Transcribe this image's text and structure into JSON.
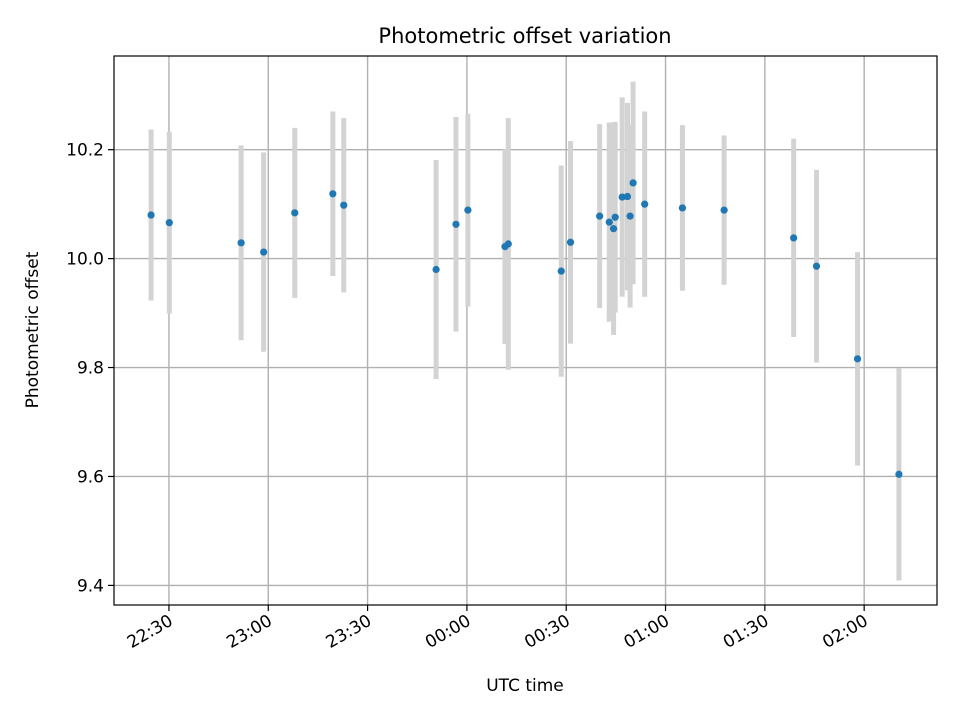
{
  "chart_data": {
    "type": "scatter",
    "title": "Photometric offset variation",
    "xlabel": "UTC time",
    "ylabel": "Photometric offset",
    "x_unit": "minutes",
    "x_ticks": [
      {
        "label": "22:30",
        "value": 0
      },
      {
        "label": "23:00",
        "value": 30
      },
      {
        "label": "23:30",
        "value": 60
      },
      {
        "label": "00:00",
        "value": 90
      },
      {
        "label": "00:30",
        "value": 120
      },
      {
        "label": "01:00",
        "value": 150
      },
      {
        "label": "01:30",
        "value": 180
      },
      {
        "label": "02:00",
        "value": 210
      }
    ],
    "y_ticks": [
      9.4,
      9.6,
      9.8,
      10.0,
      10.2
    ],
    "xlim": [
      -16.6,
      232.0
    ],
    "ylim": [
      9.364,
      10.372
    ],
    "grid": true,
    "colors": {
      "points": "#1f77b4",
      "errorbars": "#d3d3d3"
    },
    "points": [
      {
        "x": -5.4,
        "y": 10.08,
        "err": 0.157
      },
      {
        "x": 0.1,
        "y": 10.066,
        "err": 0.167
      },
      {
        "x": 21.8,
        "y": 10.029,
        "err": 0.179
      },
      {
        "x": 28.6,
        "y": 10.012,
        "err": 0.183
      },
      {
        "x": 38.0,
        "y": 10.084,
        "err": 0.156
      },
      {
        "x": 49.5,
        "y": 10.119,
        "err": 0.151
      },
      {
        "x": 52.8,
        "y": 10.098,
        "err": 0.16
      },
      {
        "x": 80.7,
        "y": 9.98,
        "err": 0.201
      },
      {
        "x": 86.7,
        "y": 10.063,
        "err": 0.197
      },
      {
        "x": 90.3,
        "y": 10.089,
        "err": 0.177
      },
      {
        "x": 101.5,
        "y": 10.022,
        "err": 0.179
      },
      {
        "x": 102.5,
        "y": 10.027,
        "err": 0.231
      },
      {
        "x": 118.5,
        "y": 9.977,
        "err": 0.194
      },
      {
        "x": 121.3,
        "y": 10.03,
        "err": 0.186
      },
      {
        "x": 130.1,
        "y": 10.078,
        "err": 0.169
      },
      {
        "x": 133.0,
        "y": 10.067,
        "err": 0.183
      },
      {
        "x": 134.3,
        "y": 10.055,
        "err": 0.195
      },
      {
        "x": 134.8,
        "y": 10.076,
        "err": 0.175
      },
      {
        "x": 136.9,
        "y": 10.113,
        "err": 0.183
      },
      {
        "x": 138.5,
        "y": 10.114,
        "err": 0.172
      },
      {
        "x": 139.3,
        "y": 10.078,
        "err": 0.168
      },
      {
        "x": 140.2,
        "y": 10.139,
        "err": 0.186
      },
      {
        "x": 143.7,
        "y": 10.1,
        "err": 0.17
      },
      {
        "x": 155.1,
        "y": 10.093,
        "err": 0.152
      },
      {
        "x": 167.7,
        "y": 10.089,
        "err": 0.137
      },
      {
        "x": 188.7,
        "y": 10.038,
        "err": 0.182
      },
      {
        "x": 195.6,
        "y": 9.986,
        "err": 0.177
      },
      {
        "x": 208.0,
        "y": 9.816,
        "err": 0.196
      },
      {
        "x": 220.5,
        "y": 9.604,
        "err": 0.195
      }
    ]
  }
}
